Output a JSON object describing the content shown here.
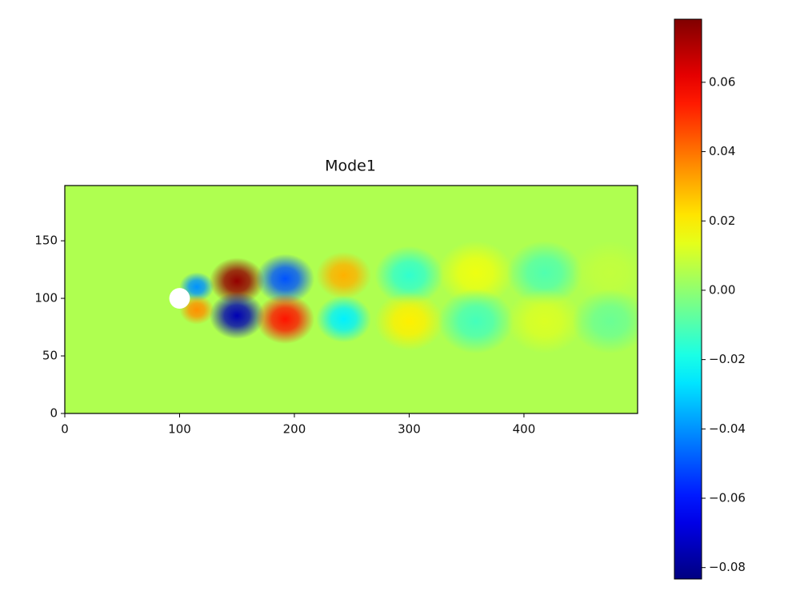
{
  "chart_data": {
    "type": "heatmap",
    "title": "Mode1",
    "colormap": "jet",
    "xlim": [
      0,
      499
    ],
    "ylim": [
      0,
      198
    ],
    "xticks": [
      0,
      100,
      200,
      300,
      400
    ],
    "yticks": [
      0,
      50,
      100,
      150
    ],
    "background_value": 0.005,
    "obstacle": {
      "x": 100,
      "y": 100,
      "r": 9
    },
    "blobs": {
      "x": [
        115,
        115,
        150,
        150,
        192,
        192,
        243,
        243,
        300,
        300,
        358,
        358,
        418,
        418,
        475,
        475
      ],
      "y": [
        110,
        90,
        115,
        85,
        117,
        82,
        120,
        82,
        120,
        80,
        122,
        80,
        122,
        80,
        122,
        80
      ],
      "values": [
        -0.04,
        0.035,
        0.075,
        -0.075,
        -0.05,
        0.055,
        0.03,
        -0.025,
        -0.015,
        0.02,
        0.015,
        -0.012,
        -0.01,
        0.012,
        0.008,
        -0.006
      ],
      "radius": [
        10,
        10,
        16,
        16,
        17,
        17,
        16,
        16,
        20,
        20,
        22,
        22,
        22,
        22,
        22,
        22
      ]
    },
    "clim": [
      -0.0833,
      0.0782
    ],
    "cticks": [
      {
        "value": -0.08,
        "label": "−0.08"
      },
      {
        "value": -0.06,
        "label": "−0.06"
      },
      {
        "value": -0.04,
        "label": "−0.04"
      },
      {
        "value": -0.02,
        "label": "−0.02"
      },
      {
        "value": 0,
        "label": "0.00"
      },
      0.02,
      0.04,
      0.06
    ]
  }
}
